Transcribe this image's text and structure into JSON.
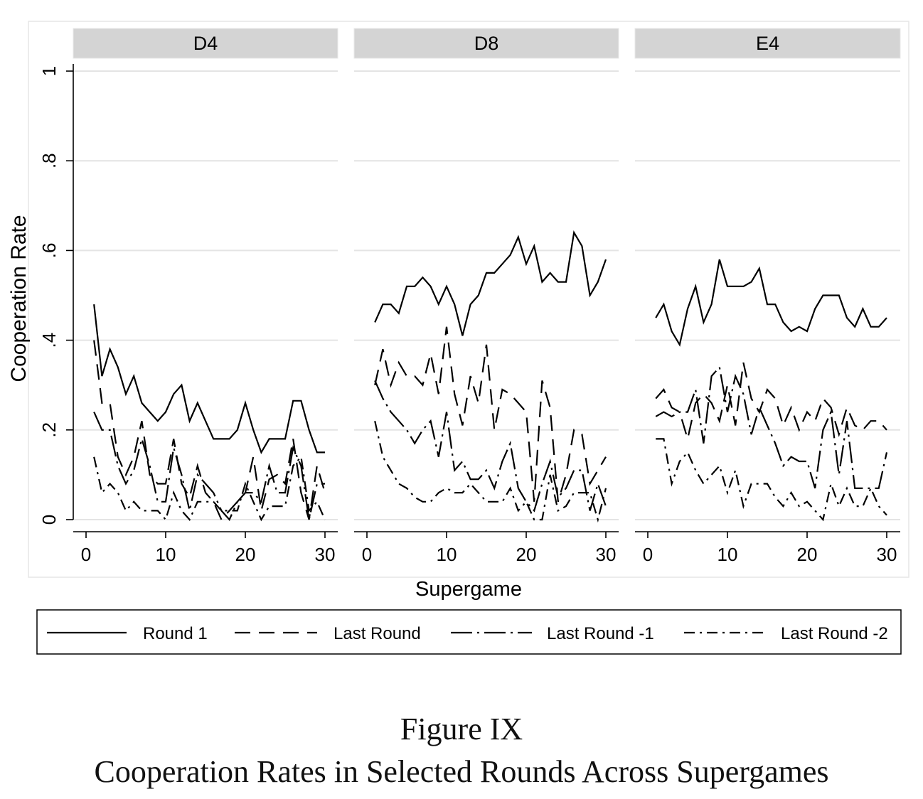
{
  "chart_data": {
    "type": "line",
    "ylabel": "Cooperation Rate",
    "xlabel": "Supergame",
    "ylim": [
      0,
      1
    ],
    "xlim": [
      0,
      30
    ],
    "yticks": [
      0,
      0.2,
      0.4,
      0.6,
      0.8,
      1
    ],
    "ytick_labels": [
      "0",
      ".2",
      ".4",
      ".6",
      ".8",
      "1"
    ],
    "xticks": [
      0,
      10,
      20,
      30
    ],
    "xtick_labels": [
      "0",
      "10",
      "20",
      "30"
    ],
    "grid": true,
    "legend_position": "bottom",
    "legend": [
      {
        "label": "Round 1",
        "dash": "solid"
      },
      {
        "label": "Last Round",
        "dash": "dashed"
      },
      {
        "label": "Last Round -1",
        "dash": "longdash-dot"
      },
      {
        "label": "Last Round -2",
        "dash": "dash-dot"
      }
    ],
    "panels": [
      {
        "title": "D4",
        "x": [
          1,
          2,
          3,
          4,
          5,
          6,
          7,
          8,
          9,
          10,
          11,
          12,
          13,
          14,
          15,
          16,
          17,
          18,
          19,
          20,
          21,
          22,
          23,
          24,
          25,
          26,
          27,
          28,
          29,
          30
        ],
        "series": [
          {
            "name": "Round 1",
            "values": [
              0.48,
              0.32,
              0.38,
              0.34,
              0.28,
              0.32,
              0.26,
              0.24,
              0.22,
              0.24,
              0.28,
              0.3,
              0.22,
              0.26,
              0.22,
              0.18,
              0.18,
              0.18,
              0.2,
              0.26,
              0.2,
              0.15,
              0.18,
              0.18,
              0.18,
              0.265,
              0.265,
              0.2,
              0.15,
              0.15
            ]
          },
          {
            "name": "Last Round",
            "values": [
              0.4,
              0.26,
              0.26,
              0.14,
              0.1,
              0.14,
              0.22,
              0.1,
              0.08,
              0.08,
              0.18,
              0.08,
              0.05,
              0.12,
              0.06,
              0.04,
              0.0,
              0.02,
              0.04,
              0.06,
              0.14,
              0.02,
              0.09,
              0.1,
              0.08,
              0.18,
              0.06,
              0.0,
              0.12,
              0.06
            ]
          },
          {
            "name": "Last Round -1",
            "values": [
              0.24,
              0.2,
              0.2,
              0.12,
              0.08,
              0.11,
              0.18,
              0.12,
              0.04,
              0.04,
              0.16,
              0.1,
              0.02,
              0.1,
              0.08,
              0.06,
              0.02,
              0.0,
              0.04,
              0.06,
              0.06,
              0.04,
              0.12,
              0.06,
              0.06,
              0.16,
              0.12,
              0.0,
              0.08,
              0.08
            ]
          },
          {
            "name": "Last Round -2",
            "values": [
              0.14,
              0.06,
              0.08,
              0.06,
              0.02,
              0.04,
              0.02,
              0.02,
              0.02,
              0.0,
              0.06,
              0.02,
              0.0,
              0.04,
              0.04,
              0.04,
              0.02,
              0.02,
              0.02,
              0.08,
              0.04,
              0.0,
              0.03,
              0.03,
              0.03,
              0.12,
              0.14,
              0.02,
              0.04,
              0.0
            ]
          }
        ]
      },
      {
        "title": "D8",
        "x": [
          1,
          2,
          3,
          4,
          5,
          6,
          7,
          8,
          9,
          10,
          11,
          12,
          13,
          14,
          15,
          16,
          17,
          18,
          19,
          20,
          21,
          22,
          23,
          24,
          25,
          26,
          27,
          28,
          29,
          30
        ],
        "series": [
          {
            "name": "Round 1",
            "values": [
              0.44,
              0.48,
              0.48,
              0.46,
              0.52,
              0.52,
              0.54,
              0.52,
              0.48,
              0.52,
              0.48,
              0.41,
              0.48,
              0.5,
              0.55,
              0.55,
              0.57,
              0.59,
              0.63,
              0.57,
              0.61,
              0.53,
              0.55,
              0.53,
              0.53,
              0.64,
              0.61,
              0.5,
              0.53,
              0.58
            ]
          },
          {
            "name": "Last Round",
            "values": [
              0.3,
              0.38,
              0.3,
              0.35,
              0.32,
              0.32,
              0.3,
              0.37,
              0.28,
              0.43,
              0.28,
              0.21,
              0.32,
              0.26,
              0.39,
              0.2,
              0.29,
              0.28,
              0.26,
              0.24,
              0.04,
              0.31,
              0.25,
              0.04,
              0.1,
              0.2,
              0.19,
              0.08,
              0.11,
              0.14
            ]
          },
          {
            "name": "Last Round -1",
            "values": [
              0.31,
              0.27,
              0.24,
              0.22,
              0.2,
              0.17,
              0.2,
              0.22,
              0.14,
              0.24,
              0.11,
              0.13,
              0.09,
              0.09,
              0.11,
              0.07,
              0.13,
              0.17,
              0.07,
              0.04,
              0.02,
              0.08,
              0.13,
              0.05,
              0.07,
              0.11,
              0.11,
              0.02,
              0.08,
              0.03
            ]
          },
          {
            "name": "Last Round -2",
            "values": [
              0.22,
              0.14,
              0.11,
              0.08,
              0.07,
              0.05,
              0.04,
              0.04,
              0.06,
              0.07,
              0.06,
              0.06,
              0.08,
              0.06,
              0.04,
              0.04,
              0.04,
              0.07,
              0.02,
              0.04,
              0.0,
              0.0,
              0.1,
              0.02,
              0.03,
              0.06,
              0.06,
              0.06,
              0.0,
              0.07
            ]
          }
        ]
      },
      {
        "title": "E4",
        "x": [
          1,
          2,
          3,
          4,
          5,
          6,
          7,
          8,
          9,
          10,
          11,
          12,
          13,
          14,
          15,
          16,
          17,
          18,
          19,
          20,
          21,
          22,
          23,
          24,
          25,
          26,
          27,
          28,
          29,
          30
        ],
        "series": [
          {
            "name": "Round 1",
            "values": [
              0.45,
              0.48,
              0.42,
              0.39,
              0.47,
              0.52,
              0.44,
              0.48,
              0.58,
              0.52,
              0.52,
              0.52,
              0.53,
              0.56,
              0.48,
              0.48,
              0.44,
              0.42,
              0.43,
              0.42,
              0.47,
              0.5,
              0.5,
              0.5,
              0.45,
              0.43,
              0.47,
              0.43,
              0.43,
              0.45
            ]
          },
          {
            "name": "Last Round",
            "values": [
              0.27,
              0.29,
              0.25,
              0.24,
              0.18,
              0.26,
              0.28,
              0.26,
              0.22,
              0.3,
              0.21,
              0.35,
              0.27,
              0.24,
              0.29,
              0.27,
              0.21,
              0.25,
              0.2,
              0.24,
              0.22,
              0.27,
              0.25,
              0.19,
              0.25,
              0.21,
              0.2,
              0.22,
              0.22,
              0.2
            ]
          },
          {
            "name": "Last Round -1",
            "values": [
              0.23,
              0.24,
              0.23,
              0.24,
              0.24,
              0.29,
              0.17,
              0.32,
              0.34,
              0.24,
              0.32,
              0.28,
              0.19,
              0.25,
              0.21,
              0.17,
              0.12,
              0.14,
              0.13,
              0.13,
              0.07,
              0.2,
              0.24,
              0.1,
              0.22,
              0.07,
              0.07,
              0.07,
              0.07,
              0.15
            ]
          },
          {
            "name": "Last Round -2",
            "values": [
              0.18,
              0.18,
              0.08,
              0.13,
              0.15,
              0.11,
              0.08,
              0.1,
              0.12,
              0.06,
              0.11,
              0.03,
              0.08,
              0.08,
              0.08,
              0.05,
              0.03,
              0.06,
              0.03,
              0.04,
              0.02,
              0.0,
              0.08,
              0.03,
              0.07,
              0.03,
              0.03,
              0.07,
              0.03,
              0.01
            ]
          }
        ]
      }
    ]
  },
  "caption": {
    "number": "Figure IX",
    "title": "Cooperation Rates in Selected Rounds Across Supergames"
  }
}
